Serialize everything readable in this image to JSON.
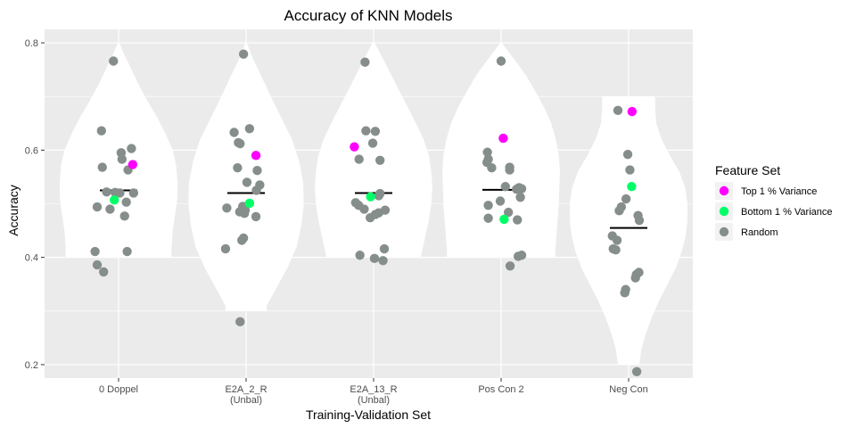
{
  "chart_data": {
    "type": "violin-jitter",
    "title": "Accuracy of KNN Models",
    "xlabel": "Training-Validation Set",
    "ylabel": "Accuracy",
    "ylim": [
      0.175,
      0.825
    ],
    "yticks": [
      "0.2",
      "0.4",
      "0.6",
      "0.8"
    ],
    "ytick_values": [
      0.2,
      0.4,
      0.6,
      0.8
    ],
    "categories": [
      {
        "label": "0 Doppel",
        "sublabel": ""
      },
      {
        "label": "E2A_2_R",
        "sublabel": "(Unbal)"
      },
      {
        "label": "E2A_13_R",
        "sublabel": "(Unbal)"
      },
      {
        "label": "Pos Con 2",
        "sublabel": ""
      },
      {
        "label": "Neg Con",
        "sublabel": ""
      }
    ],
    "legend": {
      "title": "Feature Set",
      "position": "right",
      "entries": [
        {
          "label": "Top 1 % Variance",
          "color": "#ff00ff"
        },
        {
          "label": "Bottom 1 % Variance",
          "color": "#00ff66"
        },
        {
          "label": "Random",
          "color": "#868e8b"
        }
      ]
    },
    "series": [
      {
        "category": "0 Doppel",
        "mean": 0.525,
        "violin": [
          [
            0.8,
            0.01
          ],
          [
            0.78,
            0.09
          ],
          [
            0.75,
            0.22
          ],
          [
            0.72,
            0.35
          ],
          [
            0.69,
            0.5
          ],
          [
            0.66,
            0.66
          ],
          [
            0.63,
            0.8
          ],
          [
            0.6,
            0.92
          ],
          [
            0.57,
            0.98
          ],
          [
            0.54,
            1.0
          ],
          [
            0.51,
            1.0
          ],
          [
            0.48,
            0.96
          ],
          [
            0.45,
            0.92
          ],
          [
            0.42,
            0.9
          ],
          [
            0.4,
            0.9
          ]
        ],
        "top": [
          {
            "y": 0.573,
            "j": 0.33
          }
        ],
        "bottom": [
          {
            "y": 0.507,
            "j": -0.1
          }
        ],
        "random": [
          {
            "y": 0.766,
            "j": -0.12
          },
          {
            "y": 0.636,
            "j": -0.4
          },
          {
            "y": 0.603,
            "j": 0.3
          },
          {
            "y": 0.595,
            "j": 0.06
          },
          {
            "y": 0.583,
            "j": 0.08
          },
          {
            "y": 0.568,
            "j": -0.38
          },
          {
            "y": 0.563,
            "j": 0.22
          },
          {
            "y": 0.522,
            "j": -0.28
          },
          {
            "y": 0.521,
            "j": -0.08
          },
          {
            "y": 0.52,
            "j": 0.03
          },
          {
            "y": 0.52,
            "j": 0.35
          },
          {
            "y": 0.503,
            "j": 0.18
          },
          {
            "y": 0.494,
            "j": -0.5
          },
          {
            "y": 0.49,
            "j": -0.2
          },
          {
            "y": 0.477,
            "j": 0.14
          },
          {
            "y": 0.411,
            "j": -0.55
          },
          {
            "y": 0.411,
            "j": 0.2
          },
          {
            "y": 0.386,
            "j": -0.5
          },
          {
            "y": 0.373,
            "j": -0.35
          }
        ]
      },
      {
        "category": "E2A_2_R",
        "mean": 0.52,
        "violin": [
          [
            0.8,
            0.01
          ],
          [
            0.77,
            0.12
          ],
          [
            0.74,
            0.25
          ],
          [
            0.7,
            0.42
          ],
          [
            0.66,
            0.6
          ],
          [
            0.62,
            0.78
          ],
          [
            0.58,
            0.9
          ],
          [
            0.54,
            0.97
          ],
          [
            0.5,
            0.98
          ],
          [
            0.46,
            0.94
          ],
          [
            0.42,
            0.86
          ],
          [
            0.38,
            0.7
          ],
          [
            0.34,
            0.5
          ],
          [
            0.31,
            0.35
          ],
          [
            0.3,
            0.35
          ]
        ],
        "top": [
          {
            "y": 0.59,
            "j": 0.23
          }
        ],
        "bottom": [
          {
            "y": 0.501,
            "j": 0.08
          }
        ],
        "random": [
          {
            "y": 0.779,
            "j": -0.06
          },
          {
            "y": 0.64,
            "j": 0.08
          },
          {
            "y": 0.633,
            "j": -0.28
          },
          {
            "y": 0.614,
            "j": -0.18
          },
          {
            "y": 0.612,
            "j": -0.14
          },
          {
            "y": 0.567,
            "j": -0.2
          },
          {
            "y": 0.562,
            "j": 0.26
          },
          {
            "y": 0.54,
            "j": 0.02
          },
          {
            "y": 0.535,
            "j": 0.32
          },
          {
            "y": 0.525,
            "j": 0.24
          },
          {
            "y": 0.492,
            "j": -0.45
          },
          {
            "y": 0.495,
            "j": -0.08
          },
          {
            "y": 0.488,
            "j": -0.02
          },
          {
            "y": 0.485,
            "j": -0.15
          },
          {
            "y": 0.482,
            "j": -0.04
          },
          {
            "y": 0.476,
            "j": 0.23
          },
          {
            "y": 0.436,
            "j": -0.06
          },
          {
            "y": 0.432,
            "j": -0.1
          },
          {
            "y": 0.416,
            "j": -0.48
          },
          {
            "y": 0.28,
            "j": -0.14
          }
        ]
      },
      {
        "category": "E2A_13_R",
        "mean": 0.52,
        "violin": [
          [
            0.8,
            0.02
          ],
          [
            0.77,
            0.16
          ],
          [
            0.74,
            0.3
          ],
          [
            0.71,
            0.44
          ],
          [
            0.68,
            0.58
          ],
          [
            0.65,
            0.72
          ],
          [
            0.62,
            0.85
          ],
          [
            0.59,
            0.94
          ],
          [
            0.56,
            0.98
          ],
          [
            0.53,
            1.0
          ],
          [
            0.5,
            0.98
          ],
          [
            0.47,
            0.94
          ],
          [
            0.44,
            0.88
          ],
          [
            0.41,
            0.82
          ],
          [
            0.4,
            0.8
          ]
        ],
        "top": [
          {
            "y": 0.606,
            "j": -0.45
          }
        ],
        "bottom": [
          {
            "y": 0.513,
            "j": -0.07
          }
        ],
        "random": [
          {
            "y": 0.764,
            "j": -0.2
          },
          {
            "y": 0.636,
            "j": -0.18
          },
          {
            "y": 0.635,
            "j": 0.04
          },
          {
            "y": 0.613,
            "j": -0.02
          },
          {
            "y": 0.581,
            "j": 0.15
          },
          {
            "y": 0.583,
            "j": -0.34
          },
          {
            "y": 0.519,
            "j": 0.15
          },
          {
            "y": 0.515,
            "j": 0.12
          },
          {
            "y": 0.502,
            "j": -0.42
          },
          {
            "y": 0.497,
            "j": -0.35
          },
          {
            "y": 0.49,
            "j": -0.22
          },
          {
            "y": 0.488,
            "j": 0.27
          },
          {
            "y": 0.483,
            "j": 0.12
          },
          {
            "y": 0.48,
            "j": 0.04
          },
          {
            "y": 0.474,
            "j": -0.08
          },
          {
            "y": 0.416,
            "j": 0.25
          },
          {
            "y": 0.404,
            "j": -0.32
          },
          {
            "y": 0.398,
            "j": 0.02
          },
          {
            "y": 0.394,
            "j": 0.22
          }
        ]
      },
      {
        "category": "Pos Con 2",
        "mean": 0.526,
        "violin": [
          [
            0.8,
            0.01
          ],
          [
            0.77,
            0.22
          ],
          [
            0.74,
            0.42
          ],
          [
            0.71,
            0.58
          ],
          [
            0.68,
            0.73
          ],
          [
            0.65,
            0.85
          ],
          [
            0.62,
            0.93
          ],
          [
            0.59,
            0.98
          ],
          [
            0.56,
            1.0
          ],
          [
            0.53,
            0.99
          ],
          [
            0.5,
            0.98
          ],
          [
            0.47,
            0.96
          ],
          [
            0.44,
            0.94
          ],
          [
            0.41,
            0.92
          ],
          [
            0.4,
            0.92
          ]
        ],
        "top": [
          {
            "y": 0.622,
            "j": 0.05
          }
        ],
        "bottom": [
          {
            "y": 0.471,
            "j": 0.07
          }
        ],
        "random": [
          {
            "y": 0.766,
            "j": 0.0
          },
          {
            "y": 0.596,
            "j": -0.32
          },
          {
            "y": 0.583,
            "j": -0.3
          },
          {
            "y": 0.577,
            "j": -0.33
          },
          {
            "y": 0.568,
            "j": 0.2
          },
          {
            "y": 0.567,
            "j": -0.22
          },
          {
            "y": 0.563,
            "j": 0.2
          },
          {
            "y": 0.532,
            "j": 0.1
          },
          {
            "y": 0.53,
            "j": 0.42
          },
          {
            "y": 0.528,
            "j": 0.48
          },
          {
            "y": 0.527,
            "j": 0.36
          },
          {
            "y": 0.512,
            "j": 0.45
          },
          {
            "y": 0.505,
            "j": -0.02
          },
          {
            "y": 0.497,
            "j": -0.3
          },
          {
            "y": 0.484,
            "j": 0.17
          },
          {
            "y": 0.473,
            "j": -0.3
          },
          {
            "y": 0.47,
            "j": 0.38
          },
          {
            "y": 0.404,
            "j": 0.48
          },
          {
            "y": 0.402,
            "j": 0.4
          },
          {
            "y": 0.384,
            "j": 0.21
          }
        ]
      },
      {
        "category": "Neg Con",
        "mean": 0.455,
        "violin": [
          [
            0.7,
            0.45
          ],
          [
            0.68,
            0.45
          ],
          [
            0.65,
            0.47
          ],
          [
            0.62,
            0.56
          ],
          [
            0.59,
            0.7
          ],
          [
            0.56,
            0.86
          ],
          [
            0.53,
            0.96
          ],
          [
            0.5,
            1.0
          ],
          [
            0.47,
            1.0
          ],
          [
            0.44,
            0.97
          ],
          [
            0.41,
            0.9
          ],
          [
            0.38,
            0.8
          ],
          [
            0.35,
            0.66
          ],
          [
            0.32,
            0.52
          ],
          [
            0.29,
            0.4
          ],
          [
            0.26,
            0.3
          ],
          [
            0.23,
            0.22
          ],
          [
            0.2,
            0.18
          ]
        ],
        "top": [
          {
            "y": 0.672,
            "j": 0.08
          }
        ],
        "bottom": [
          {
            "y": 0.532,
            "j": 0.07
          }
        ],
        "random": [
          {
            "y": 0.674,
            "j": -0.25
          },
          {
            "y": 0.592,
            "j": -0.02
          },
          {
            "y": 0.563,
            "j": 0.03
          },
          {
            "y": 0.509,
            "j": -0.06
          },
          {
            "y": 0.494,
            "j": -0.17
          },
          {
            "y": 0.487,
            "j": -0.22
          },
          {
            "y": 0.478,
            "j": 0.22
          },
          {
            "y": 0.469,
            "j": 0.25
          },
          {
            "y": 0.44,
            "j": -0.38
          },
          {
            "y": 0.432,
            "j": -0.27
          },
          {
            "y": 0.416,
            "j": -0.36
          },
          {
            "y": 0.414,
            "j": -0.3
          },
          {
            "y": 0.372,
            "j": 0.24
          },
          {
            "y": 0.368,
            "j": 0.18
          },
          {
            "y": 0.362,
            "j": 0.16
          },
          {
            "y": 0.34,
            "j": -0.07
          },
          {
            "y": 0.334,
            "j": -0.09
          },
          {
            "y": 0.187,
            "j": 0.19
          }
        ]
      }
    ]
  }
}
